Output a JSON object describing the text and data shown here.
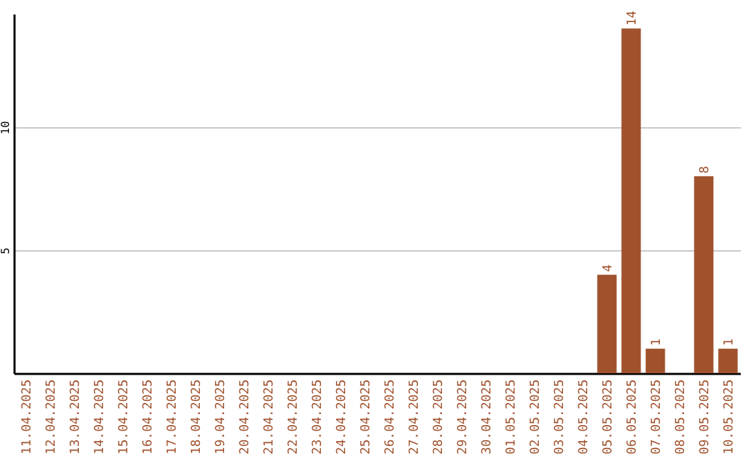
{
  "chart_data": {
    "type": "bar",
    "categories": [
      "11.04.2025",
      "12.04.2025",
      "13.04.2025",
      "14.04.2025",
      "15.04.2025",
      "16.04.2025",
      "17.04.2025",
      "18.04.2025",
      "19.04.2025",
      "20.04.2025",
      "21.04.2025",
      "22.04.2025",
      "23.04.2025",
      "24.04.2025",
      "25.04.2025",
      "26.04.2025",
      "27.04.2025",
      "28.04.2025",
      "29.04.2025",
      "30.04.2025",
      "01.05.2025",
      "02.05.2025",
      "03.05.2025",
      "04.05.2025",
      "05.05.2025",
      "06.05.2025",
      "07.05.2025",
      "08.05.2025",
      "09.05.2025",
      "10.05.2025"
    ],
    "values": [
      0,
      0,
      0,
      0,
      0,
      0,
      0,
      0,
      0,
      0,
      0,
      0,
      0,
      0,
      0,
      0,
      0,
      0,
      0,
      0,
      0,
      0,
      0,
      0,
      4,
      14,
      1,
      0,
      8,
      1
    ],
    "value_labels": [
      null,
      null,
      null,
      null,
      null,
      null,
      null,
      null,
      null,
      null,
      null,
      null,
      null,
      null,
      null,
      null,
      null,
      null,
      null,
      null,
      null,
      null,
      null,
      null,
      "4",
      "14",
      "1",
      null,
      "8",
      "1"
    ],
    "color": "#a0522d",
    "ylim": [
      0,
      14.6
    ],
    "yticks": [
      5,
      10
    ],
    "grid": "y"
  }
}
